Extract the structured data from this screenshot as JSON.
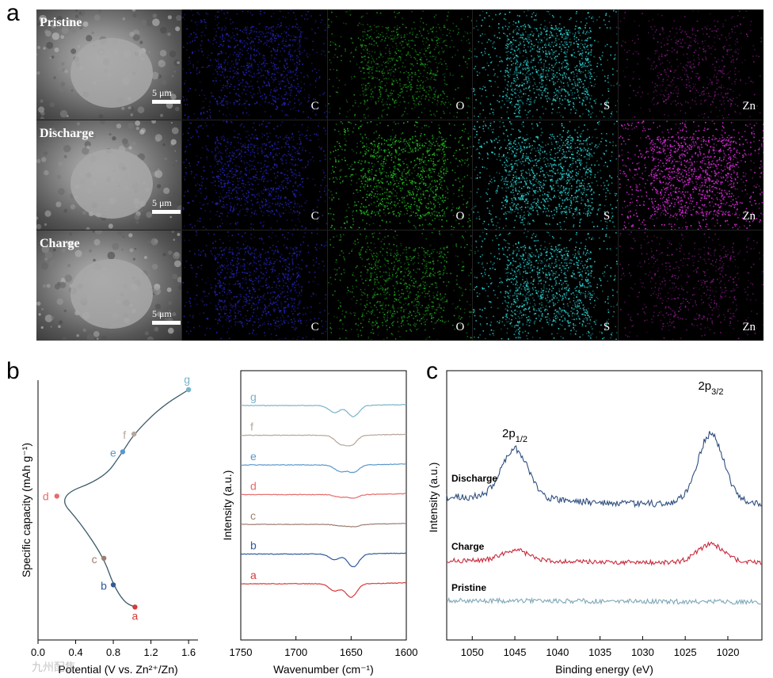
{
  "panels": {
    "a": {
      "letter": "a",
      "rows": [
        {
          "label": "Pristine",
          "scale": "5 μm",
          "map_intensity": [
            0.45,
            0.35,
            0.6,
            0.15
          ]
        },
        {
          "label": "Discharge",
          "scale": "5 μm",
          "map_intensity": [
            0.45,
            0.6,
            0.65,
            0.75
          ]
        },
        {
          "label": "Charge",
          "scale": "5 μm",
          "map_intensity": [
            0.45,
            0.4,
            0.6,
            0.15
          ]
        }
      ],
      "elements": [
        "C",
        "O",
        "S",
        "Zn"
      ],
      "colors": {
        "sem": "#8a8a8a",
        "C": "#2a2ad8",
        "O": "#22c022",
        "S": "#2ad6d6",
        "Zn": "#d42ad4"
      }
    },
    "b": {
      "letter": "b"
    },
    "c": {
      "letter": "c"
    }
  },
  "watermark": "九州配售",
  "chart_data": [
    {
      "type": "line",
      "title": "",
      "xlabel": "Potential (V vs. Zn²⁺/Zn)",
      "ylabel": "Specific capacity (mAh g⁻¹)",
      "xlim": [
        0.0,
        1.7
      ],
      "xticks": [
        "0.0",
        "0.4",
        "0.8",
        "1.2",
        "1.6"
      ],
      "curve": [
        [
          1.03,
          0.02
        ],
        [
          0.92,
          0.04
        ],
        [
          0.8,
          0.12
        ],
        [
          0.7,
          0.24
        ],
        [
          0.45,
          0.4
        ],
        [
          0.2,
          0.52
        ],
        [
          0.7,
          0.6
        ],
        [
          0.9,
          0.72
        ],
        [
          1.02,
          0.8
        ],
        [
          1.3,
          0.92
        ],
        [
          1.6,
          1.0
        ]
      ],
      "points": [
        {
          "label": "a",
          "x": 1.03,
          "y": 0.02,
          "color": "#d63a3a"
        },
        {
          "label": "b",
          "x": 0.8,
          "y": 0.12,
          "color": "#2f5b9a"
        },
        {
          "label": "c",
          "x": 0.7,
          "y": 0.24,
          "color": "#9c7f73"
        },
        {
          "label": "d",
          "x": 0.2,
          "y": 0.52,
          "color": "#e86a6a"
        },
        {
          "label": "e",
          "x": 0.9,
          "y": 0.72,
          "color": "#5b97cc"
        },
        {
          "label": "f",
          "x": 1.02,
          "y": 0.8,
          "color": "#b8a69a"
        },
        {
          "label": "g",
          "x": 1.6,
          "y": 1.0,
          "color": "#7ab4c8"
        }
      ]
    },
    {
      "type": "line",
      "title": "",
      "xlabel": "Wavenumber (cm⁻¹)",
      "ylabel": "Intensity (a.u.)",
      "xlim": [
        1750,
        1600
      ],
      "xticks": [
        "1750",
        "1700",
        "1650",
        "1600"
      ],
      "series": [
        {
          "name": "g",
          "color": "#7ab4c8",
          "baseline": 0.0,
          "dips": [
            [
              1665,
              0.45
            ],
            [
              1648,
              0.7
            ]
          ]
        },
        {
          "name": "f",
          "color": "#b8a69a",
          "baseline": 1.0,
          "dips": [
            [
              1660,
              0.5
            ],
            [
              1650,
              0.6
            ]
          ]
        },
        {
          "name": "e",
          "color": "#5b97cc",
          "baseline": 2.0,
          "dips": [
            [
              1660,
              0.4
            ],
            [
              1648,
              0.45
            ]
          ]
        },
        {
          "name": "d",
          "color": "#e86a6a",
          "baseline": 3.0,
          "dips": [
            [
              1660,
              0.15
            ],
            [
              1648,
              0.2
            ]
          ]
        },
        {
          "name": "c",
          "color": "#9c7f73",
          "baseline": 4.0,
          "dips": [
            [
              1660,
              0.1
            ],
            [
              1648,
              0.15
            ]
          ]
        },
        {
          "name": "b",
          "color": "#2f5b9a",
          "baseline": 5.0,
          "dips": [
            [
              1665,
              0.35
            ],
            [
              1648,
              0.8
            ]
          ]
        },
        {
          "name": "a",
          "color": "#d63a3a",
          "baseline": 6.0,
          "dips": [
            [
              1665,
              0.45
            ],
            [
              1650,
              0.85
            ]
          ]
        }
      ]
    },
    {
      "type": "line",
      "title": "",
      "xlabel": "Binding energy (eV)",
      "ylabel": "Intensity (a.u.)",
      "xlim": [
        1053,
        1016
      ],
      "xticks": [
        "1050",
        "1045",
        "1040",
        "1035",
        "1030",
        "1025",
        "1020"
      ],
      "peak_labels": [
        {
          "base": "2p",
          "sub": "1/2",
          "x": 1045
        },
        {
          "base": "2p",
          "sub": "3/2",
          "x": 1022
        }
      ],
      "series": [
        {
          "name": "Discharge",
          "color": "#2f4f7f",
          "baseline": 0.0,
          "peaks": [
            [
              1045,
              1.6
            ],
            [
              1022,
              2.3
            ]
          ],
          "tilt": 0.15
        },
        {
          "name": "Charge",
          "color": "#c8283a",
          "baseline": 1.0,
          "peaks": [
            [
              1045,
              0.35
            ],
            [
              1022,
              0.6
            ]
          ],
          "tilt": 0.0
        },
        {
          "name": "Pristine",
          "color": "#7fa8b8",
          "baseline": 2.0,
          "peaks": [],
          "tilt": -0.1
        }
      ]
    }
  ]
}
